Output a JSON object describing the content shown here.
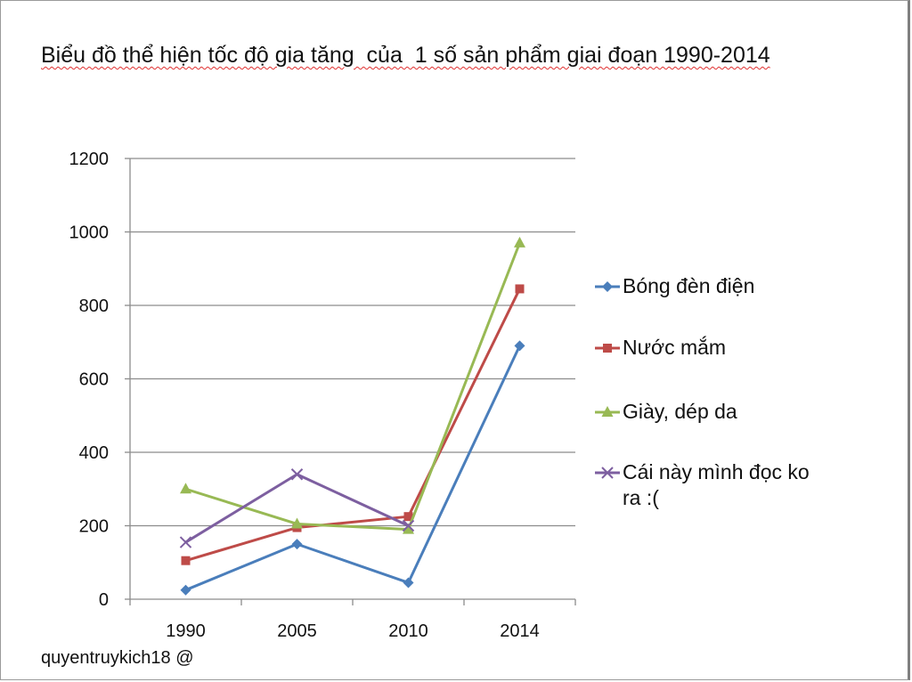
{
  "chart_data": {
    "type": "line",
    "title": "Biểu đồ thể hiện tốc độ gia tăng  của  1 số sản phẩm giai đoạn 1990-2014",
    "categories": [
      "1990",
      "2005",
      "2010",
      "2014"
    ],
    "series": [
      {
        "name": "Bóng đèn điện",
        "values": [
          25,
          150,
          45,
          690
        ],
        "color": "#4a7ebb",
        "marker": "diamond"
      },
      {
        "name": "Nước mắm",
        "values": [
          105,
          195,
          225,
          845
        ],
        "color": "#be4b48",
        "marker": "square"
      },
      {
        "name": "Giày, dép da",
        "values": [
          300,
          205,
          190,
          970
        ],
        "color": "#98b954",
        "marker": "triangle"
      },
      {
        "name": "Cái này mình đọc ko ra :(",
        "values": [
          155,
          340,
          200,
          null
        ],
        "color": "#7d5fa0",
        "marker": "x"
      }
    ],
    "yticks": [
      "0",
      "200",
      "400",
      "600",
      "800",
      "1000",
      "1200"
    ],
    "ylim": [
      0,
      1200
    ],
    "grid": true,
    "legend": "right"
  },
  "footer": {
    "text": "quyentruykich18 @"
  }
}
